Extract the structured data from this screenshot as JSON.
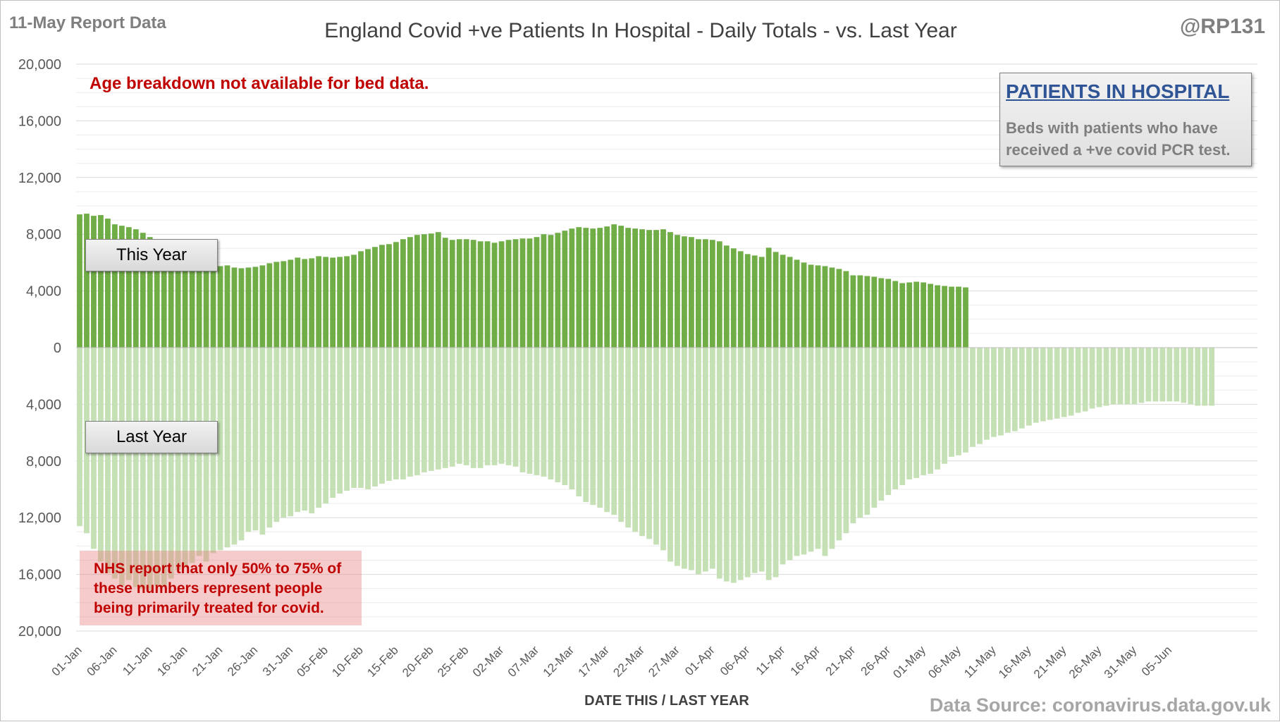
{
  "header": {
    "report_date": "11-May Report Data",
    "title": "England Covid +ve Patients In Hospital - Daily Totals - vs. Last Year",
    "author": "@RP131"
  },
  "annotations": {
    "age_note": "Age breakdown not available for bed data.",
    "this_year_label": "This Year",
    "last_year_label": "Last Year",
    "info_title": "PATIENTS IN HOSPITAL",
    "info_line1": "Beds with patients who have",
    "info_line2": "received a +ve covid PCR test.",
    "nhs_line1": "NHS report that only 50% to 75% of",
    "nhs_line2": "these numbers represent people",
    "nhs_line3": "being primarily treated for covid."
  },
  "footer": {
    "x_axis_title": "DATE THIS / LAST YEAR",
    "source": "Data Source: coronavirus.data.gov.uk"
  },
  "colors": {
    "this_year": "#70ad47",
    "last_year": "#c5e0b4",
    "grid": "#d9d9d9",
    "title_red": "#c00000",
    "info_blue": "#2f5597"
  },
  "chart_data": {
    "type": "bar",
    "orientation": "mirrored (this year above zero, last year below zero)",
    "x_start": "01-Jan",
    "x_ticks": [
      "01-Jan",
      "06-Jan",
      "11-Jan",
      "16-Jan",
      "21-Jan",
      "26-Jan",
      "31-Jan",
      "05-Feb",
      "10-Feb",
      "15-Feb",
      "20-Feb",
      "25-Feb",
      "02-Mar",
      "07-Mar",
      "12-Mar",
      "17-Mar",
      "22-Mar",
      "27-Mar",
      "01-Apr",
      "06-Apr",
      "11-Apr",
      "16-Apr",
      "21-Apr",
      "26-Apr",
      "01-May",
      "06-May",
      "11-May",
      "16-May",
      "21-May",
      "26-May",
      "31-May",
      "05-Jun"
    ],
    "y_ticks": [
      "20,000",
      "16,000",
      "12,000",
      "8,000",
      "4,000",
      "0",
      "4,000",
      "8,000",
      "12,000",
      "16,000",
      "20,000"
    ],
    "ylim": [
      -20000,
      20000
    ],
    "grid": true,
    "series": [
      {
        "name": "This Year",
        "values": [
          9400,
          9450,
          9300,
          9350,
          9100,
          8700,
          8600,
          8500,
          8350,
          8100,
          7800,
          7600,
          7300,
          7000,
          6800,
          6600,
          6400,
          6200,
          6000,
          5800,
          5750,
          5800,
          5650,
          5600,
          5650,
          5700,
          5800,
          5950,
          6050,
          6100,
          6200,
          6350,
          6250,
          6300,
          6450,
          6400,
          6350,
          6400,
          6450,
          6550,
          6800,
          6950,
          7100,
          7250,
          7300,
          7450,
          7650,
          7800,
          7950,
          8000,
          8050,
          8150,
          7750,
          7600,
          7650,
          7650,
          7600,
          7500,
          7500,
          7400,
          7500,
          7600,
          7650,
          7700,
          7700,
          7800,
          8000,
          7950,
          8100,
          8250,
          8400,
          8500,
          8450,
          8400,
          8450,
          8550,
          8700,
          8600,
          8450,
          8400,
          8350,
          8300,
          8300,
          8350,
          8150,
          7950,
          7850,
          7800,
          7650,
          7650,
          7600,
          7500,
          7200,
          7000,
          6800,
          6600,
          6500,
          6400,
          7050,
          6750,
          6550,
          6400,
          6200,
          6000,
          5850,
          5800,
          5750,
          5650,
          5550,
          5400,
          5100,
          5100,
          5050,
          5000,
          4900,
          4850,
          4700,
          4550,
          4600,
          4650,
          4600,
          4500,
          4400,
          4350,
          4300,
          4300,
          4250
        ]
      },
      {
        "name": "Last Year",
        "values": [
          12600,
          13100,
          14200,
          15100,
          15900,
          16300,
          16800,
          16400,
          16900,
          17000,
          17100,
          16800,
          16900,
          16300,
          15700,
          15500,
          15200,
          14700,
          15100,
          14500,
          14300,
          14100,
          13900,
          13600,
          13000,
          12900,
          13200,
          12700,
          12300,
          12000,
          11900,
          11600,
          11500,
          11700,
          11300,
          11000,
          10600,
          10300,
          10100,
          9900,
          9900,
          10000,
          9800,
          9600,
          9400,
          9300,
          9300,
          9100,
          9000,
          8800,
          8700,
          8600,
          8500,
          8400,
          8200,
          8300,
          8500,
          8500,
          8300,
          8300,
          8200,
          8300,
          8400,
          8800,
          8900,
          9000,
          9100,
          9300,
          9500,
          9700,
          10000,
          10500,
          10900,
          11100,
          11300,
          11600,
          11800,
          12300,
          12700,
          13000,
          13300,
          13500,
          13900,
          14300,
          15100,
          15400,
          15600,
          15700,
          16000,
          15800,
          15600,
          16300,
          16500,
          16600,
          16400,
          16200,
          15900,
          15800,
          16400,
          16200,
          15300,
          15000,
          14700,
          14600,
          14400,
          14200,
          14700,
          14200,
          13600,
          13100,
          12400,
          12000,
          11800,
          11300,
          10800,
          10400,
          10000,
          9700,
          9300,
          9200,
          9000,
          8900,
          8600,
          8200,
          7700,
          7600,
          7400,
          7000,
          6800,
          6500,
          6300,
          6200,
          6000,
          5900,
          5700,
          5500,
          5300,
          5200,
          5100,
          5000,
          4900,
          4800,
          4600,
          4500,
          4300,
          4200,
          4100,
          4000,
          4000,
          4000,
          4000,
          3900,
          3800,
          3800,
          3800,
          3800,
          3800,
          3900,
          4000,
          4100,
          4100,
          4100
        ]
      }
    ]
  }
}
